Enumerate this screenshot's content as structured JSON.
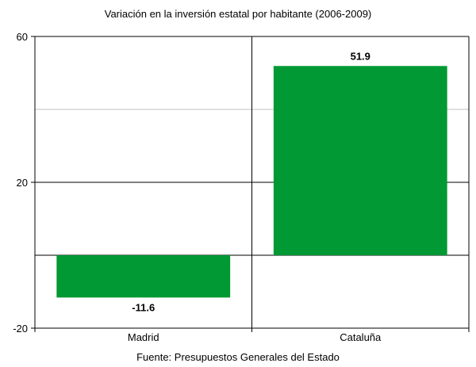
{
  "chart_data": {
    "type": "bar",
    "title": "Variación en la inversión estatal por habitante (2006-2009)",
    "categories": [
      "Madrid",
      "Cataluña"
    ],
    "values": [
      -11.6,
      51.9
    ],
    "value_labels": [
      "-11.6",
      "51.9"
    ],
    "ylim": [
      -20,
      60
    ],
    "yticks": [
      -20,
      20,
      60
    ],
    "ytick_labels": [
      "-20",
      "20",
      "60"
    ],
    "gridlines": [
      0,
      20,
      40
    ],
    "source": "Fuente: Presupuestos Generales del Estado",
    "colors": {
      "bar": "#009933",
      "grid_major": "#000000",
      "grid_minor": "#c0c0c0"
    }
  }
}
